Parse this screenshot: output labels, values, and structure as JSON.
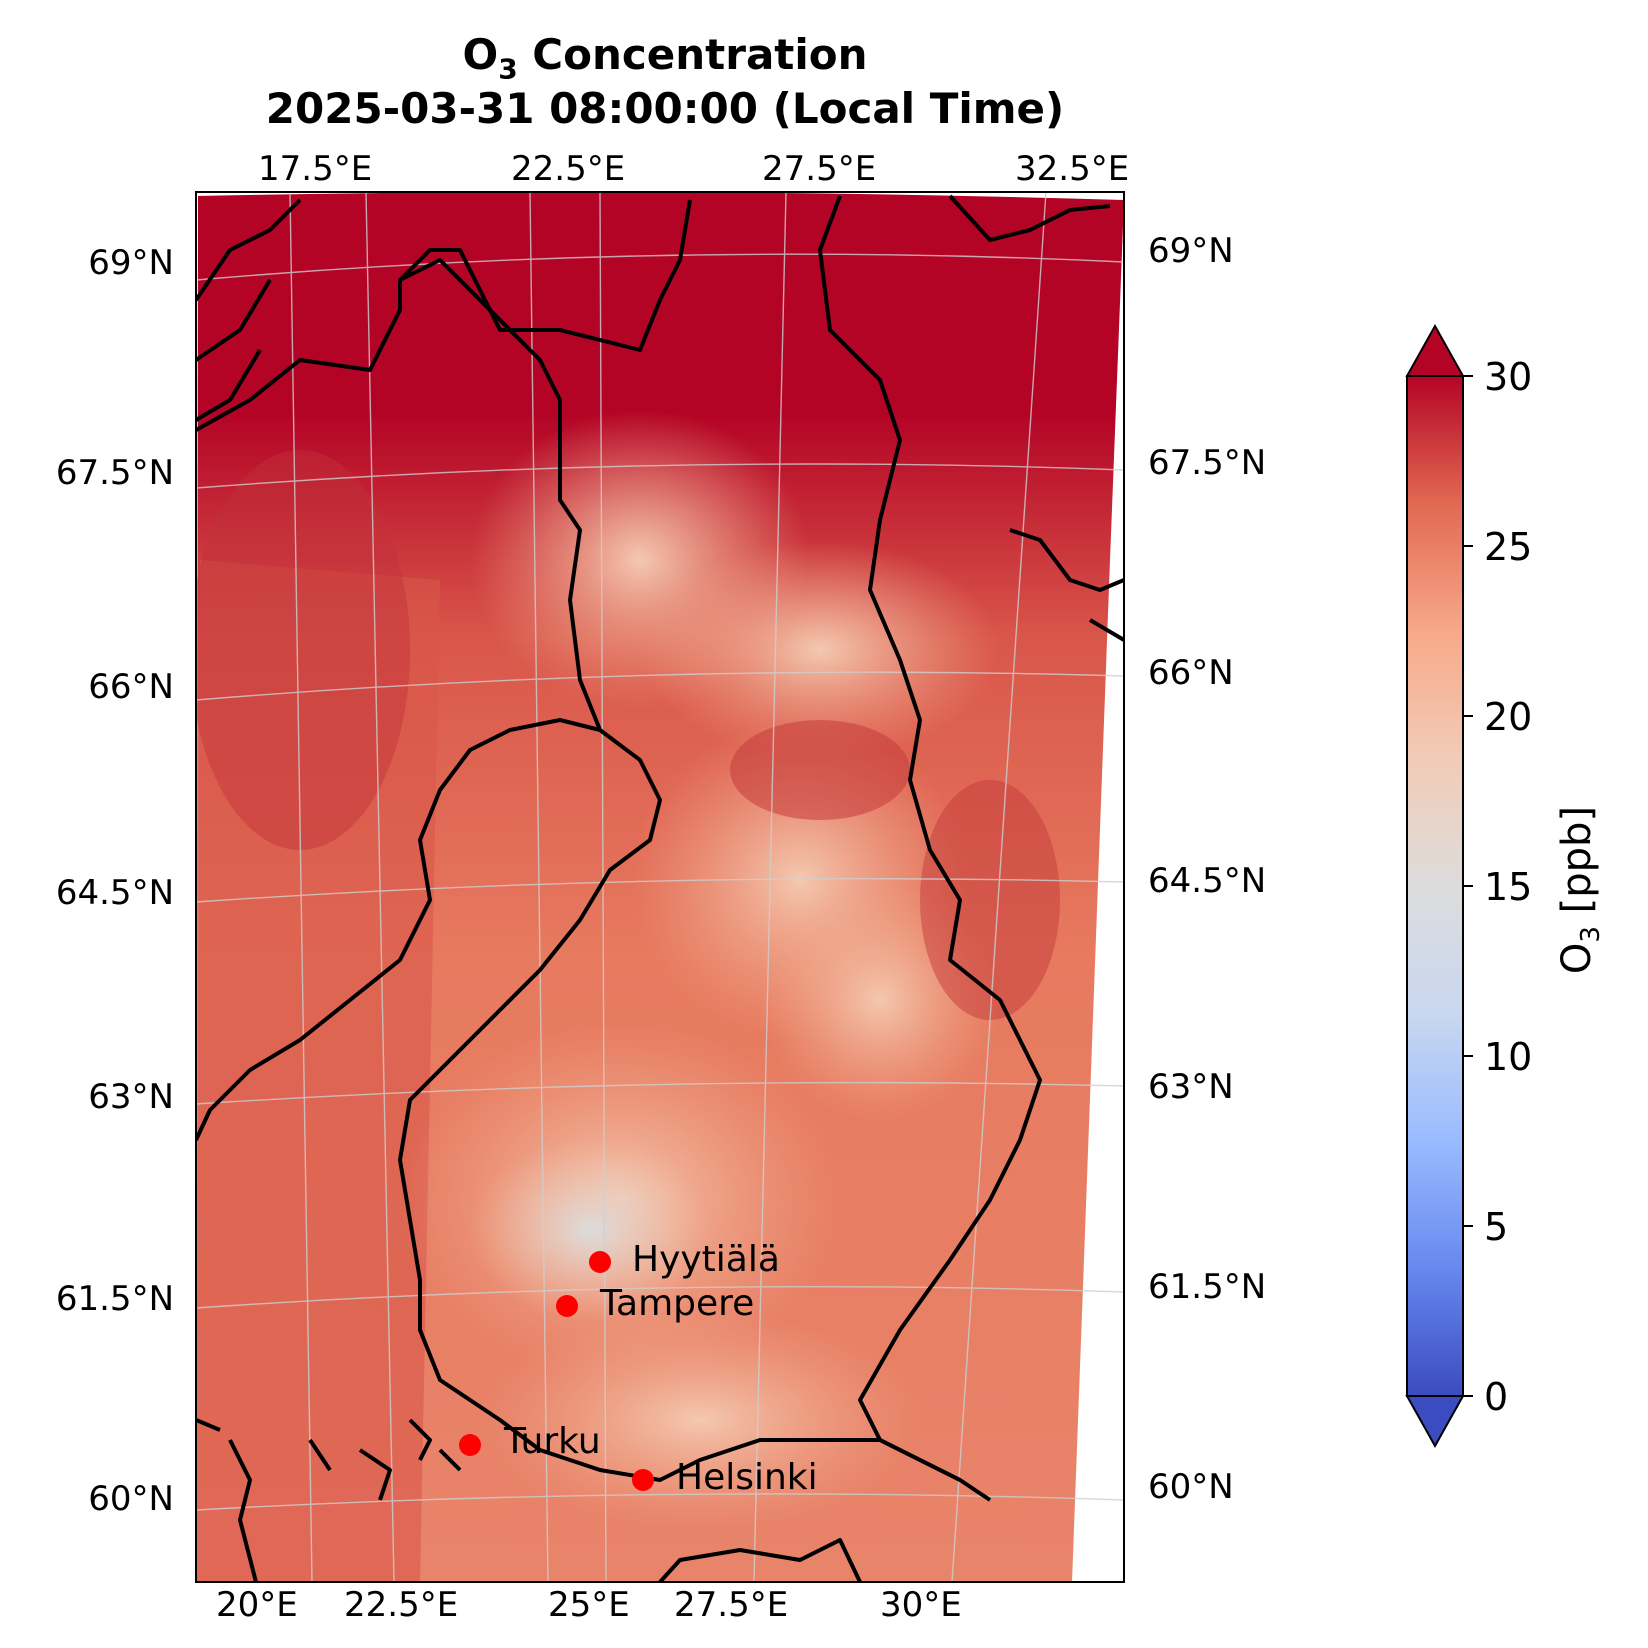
{
  "title": {
    "line1_prefix": "O",
    "line1_sub": "3",
    "line1_suffix": " Concentration",
    "line2": "2025-03-31 08:00:00 (Local Time)"
  },
  "map": {
    "region": "Finland",
    "projection": "Lambert conformal",
    "coastline_color": "#000000",
    "top_lon_ticks": [
      "17.5°E",
      "22.5°E",
      "27.5°E",
      "32.5°E"
    ],
    "bottom_lon_ticks": [
      "20°E",
      "22.5°E",
      "25°E",
      "27.5°E",
      "30°E"
    ],
    "left_lat_ticks": [
      "69°N",
      "67.5°N",
      "66°N",
      "64.5°N",
      "63°N",
      "61.5°N",
      "60°N"
    ],
    "right_lat_ticks": [
      "69°N",
      "67.5°N",
      "66°N",
      "64.5°N",
      "63°N",
      "61.5°N",
      "60°N"
    ],
    "field_description_colors": {
      "high": "#b40426",
      "mid_high": "#e0654f",
      "mid": "#f4b59b",
      "neutral": "#dddcdc",
      "low": "#aac7fd"
    },
    "cities": [
      {
        "name": "Hyytiälä",
        "lat": 61.85,
        "lon": 24.28
      },
      {
        "name": "Tampere",
        "lat": 61.5,
        "lon": 23.76
      },
      {
        "name": "Turku",
        "lat": 60.45,
        "lon": 22.27
      },
      {
        "name": "Helsinki",
        "lat": 60.17,
        "lon": 24.94
      }
    ],
    "marker_color": "#ff0000"
  },
  "colorbar": {
    "label_prefix": "O",
    "label_sub": "3",
    "label_suffix": " [ppb]",
    "ticks": [
      "0",
      "5",
      "10",
      "15",
      "20",
      "25",
      "30"
    ],
    "vmin": 0,
    "vmax": 30,
    "extend": "both",
    "colormap": "coolwarm",
    "stops": [
      "#3b4cc0",
      "#6788ee",
      "#9abbff",
      "#c9d7f0",
      "#dddcdc",
      "#f2cbb7",
      "#f7a889",
      "#e26952",
      "#b40426"
    ]
  }
}
